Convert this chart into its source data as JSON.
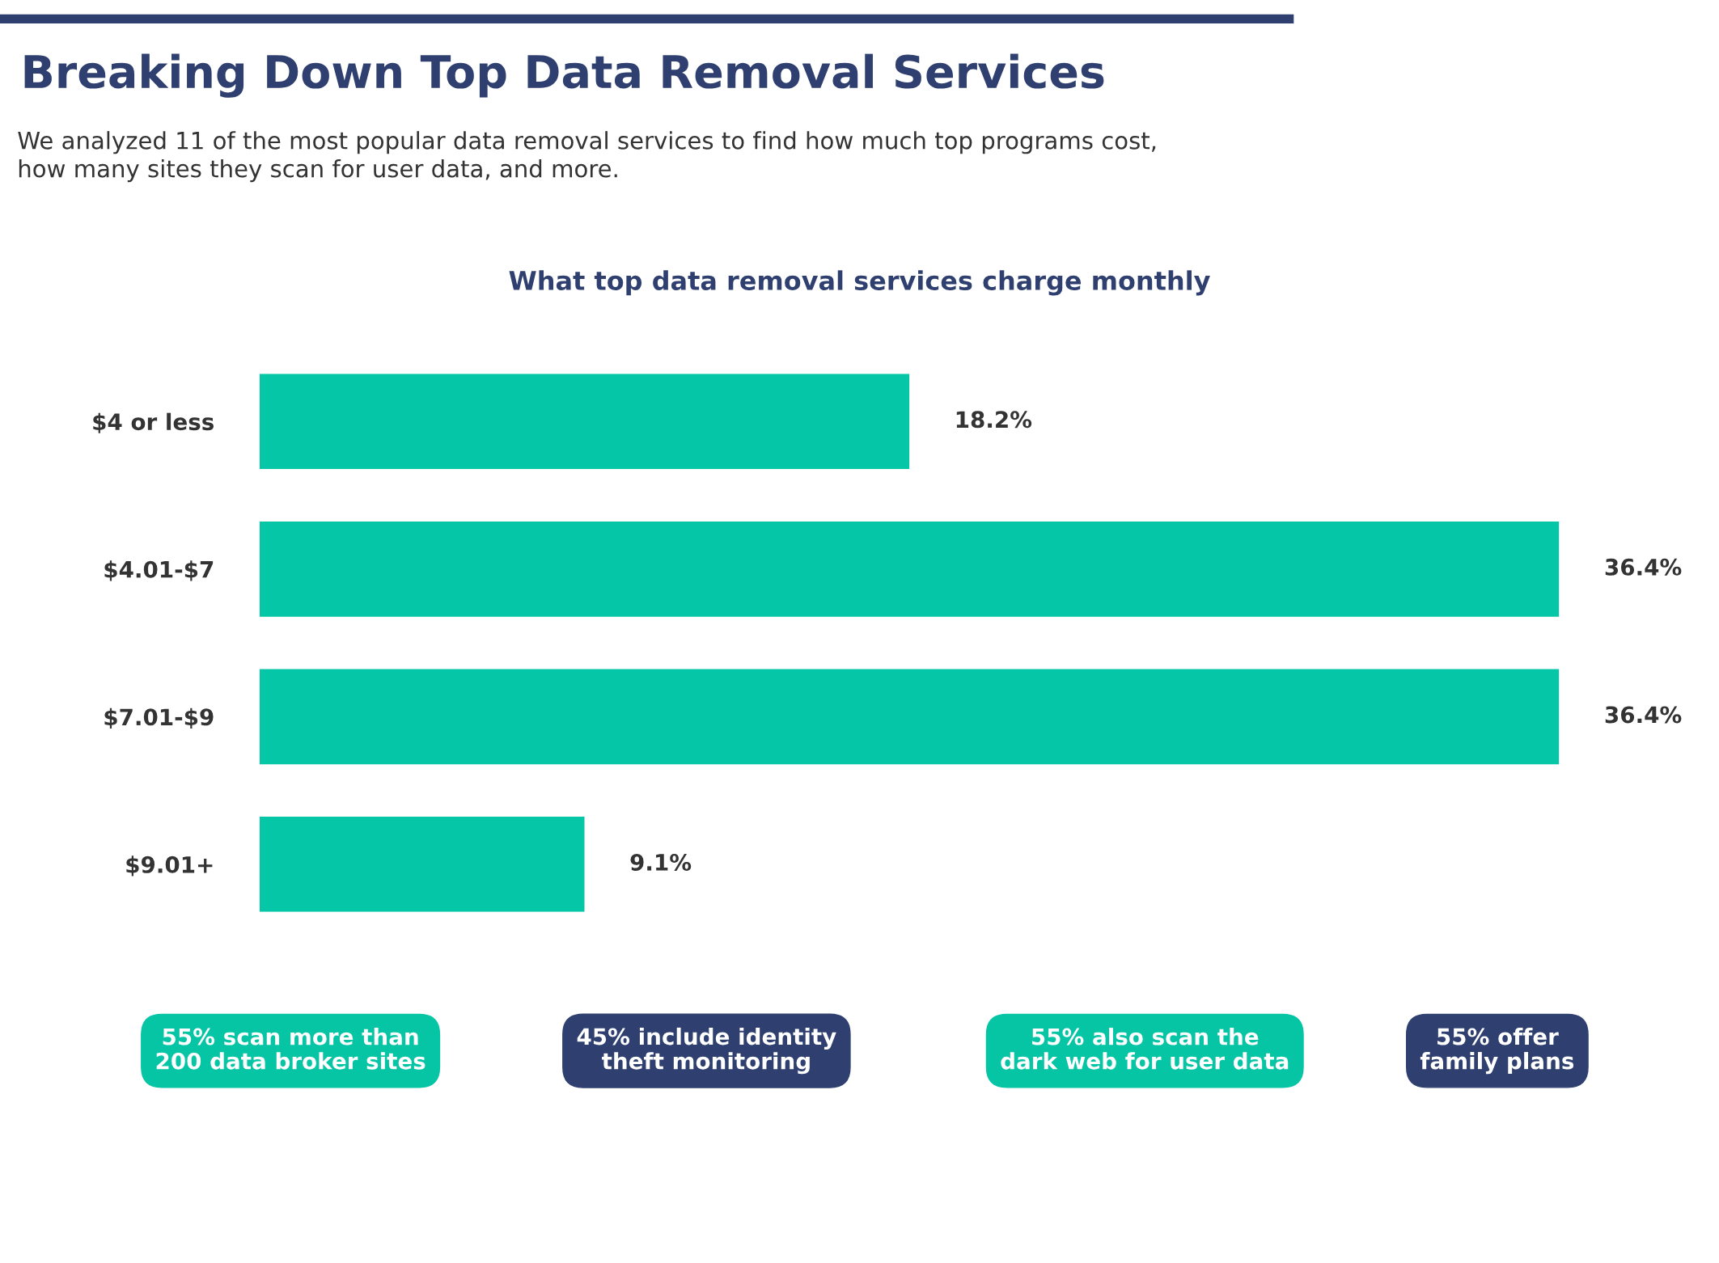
{
  "chart_data": {
    "type": "bar",
    "orientation": "horizontal",
    "title": "Breaking Down Top Data Removal Services",
    "subtitle": "We analyzed 11 of the most popular data removal services to find how much top programs cost,\nhow many sites they scan for user data, and more.",
    "categories": [
      "$4 or less",
      "$4.01-$7",
      "$7.01-$9",
      "$9.01+"
    ],
    "values": [
      18.2,
      36.4,
      36.4,
      9.1
    ],
    "color": "#05c6a6",
    "value_labels": [
      "18.2%",
      "36.4%",
      "36.4%",
      "9.1%"
    ],
    "annotations": [
      "What top data removal services charge monthly",
      "55% scan more than\n200 data broker sites",
      "45% include identity\ntheft monitoring",
      "55% also scan the\ndark web for user data",
      "55% offer\nfamily plans"
    ]
  }
}
